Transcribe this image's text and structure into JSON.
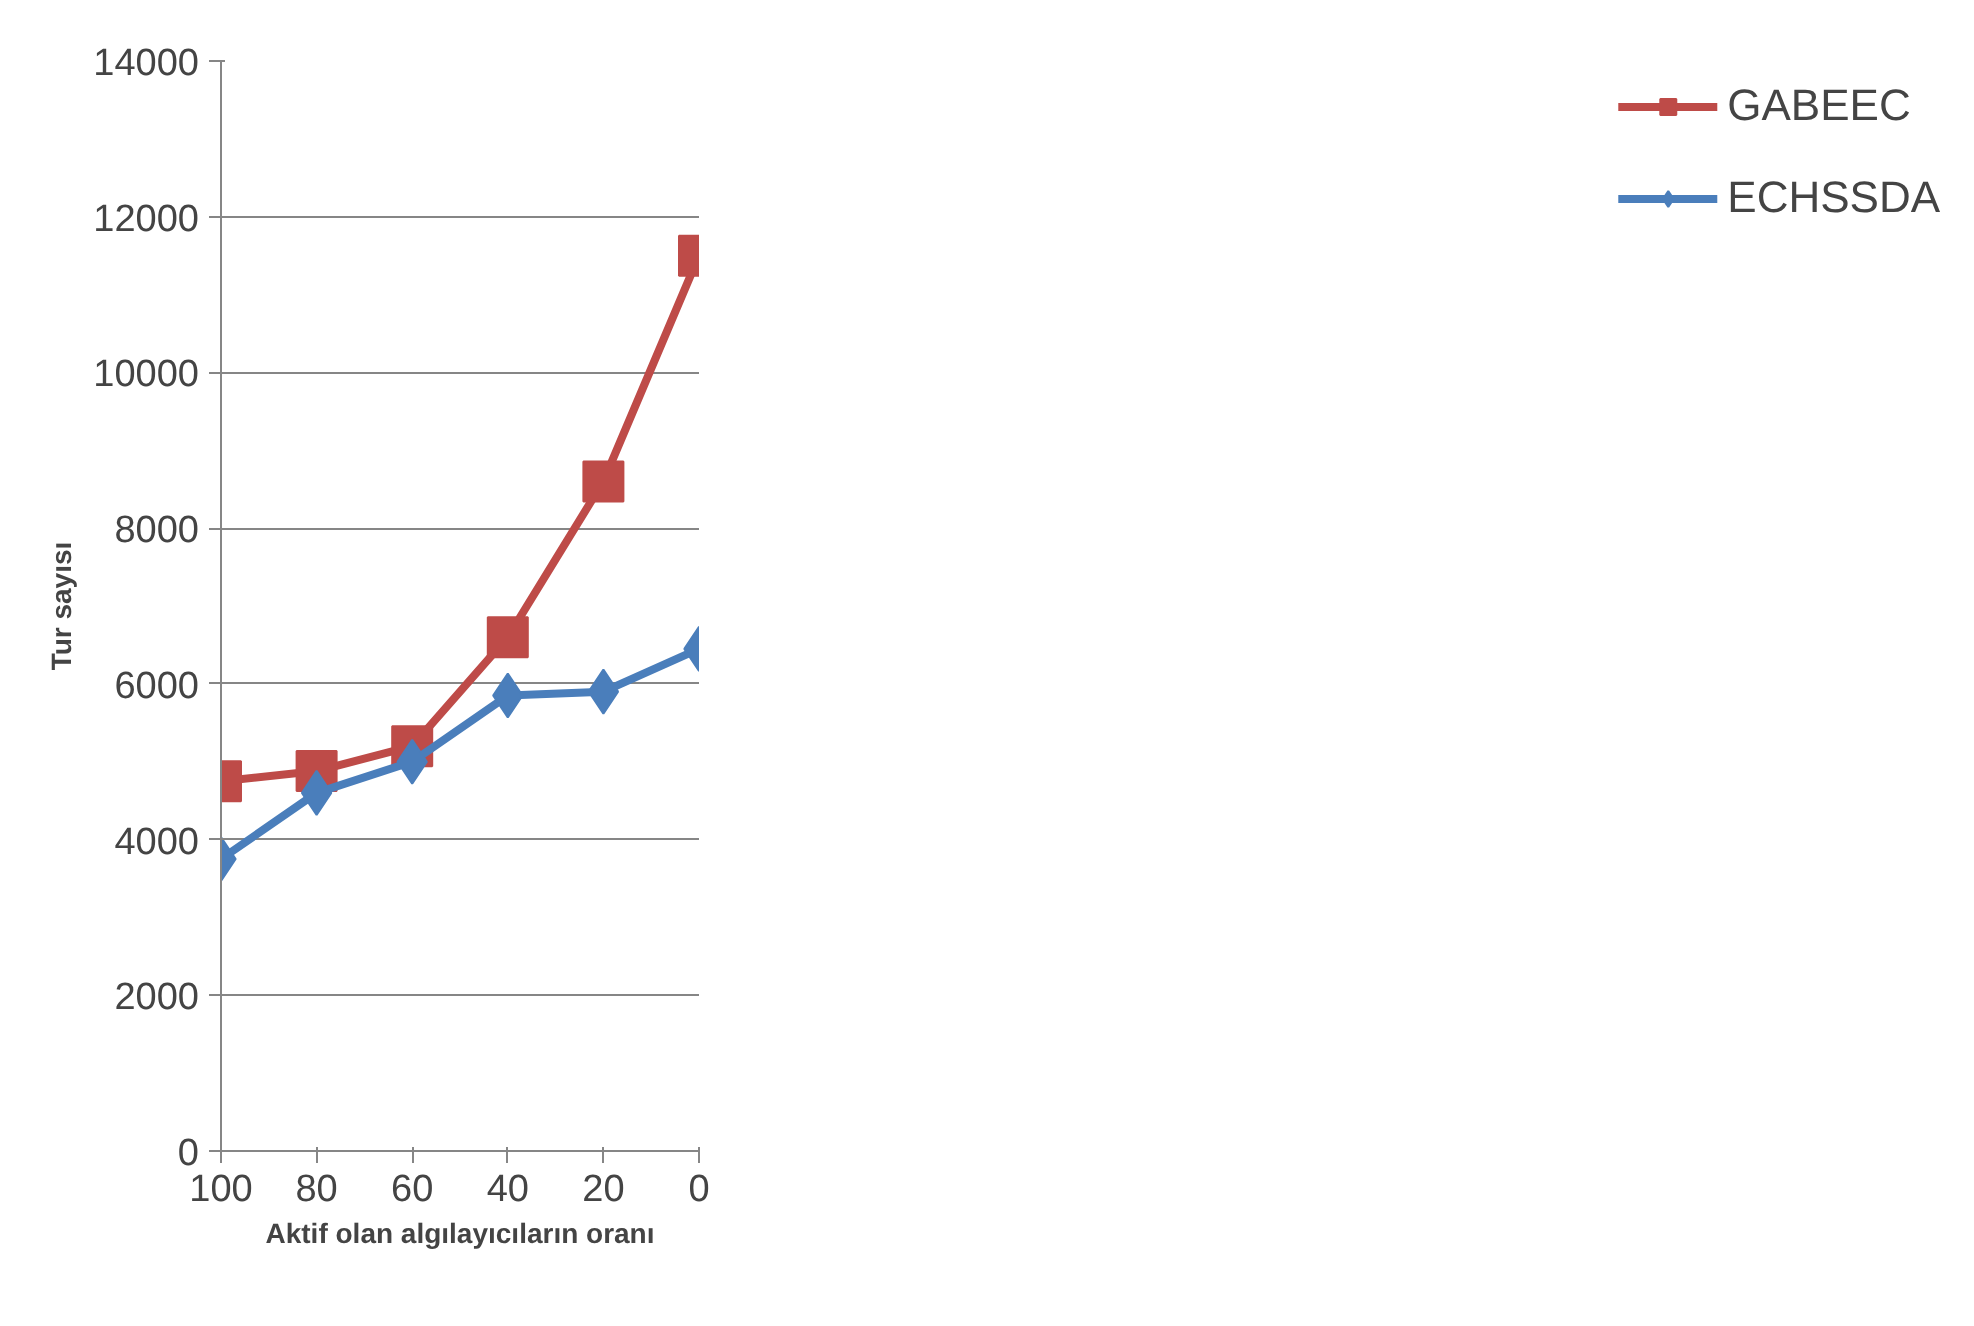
{
  "chart_data": {
    "type": "line",
    "xlabel": "Aktif olan algılayıcıların oranı",
    "ylabel": "Tur sayısı",
    "categories": [
      "100",
      "80",
      "60",
      "40",
      "20",
      "0"
    ],
    "series": [
      {
        "name": "GABEEC",
        "color": "#be4b48",
        "marker": "square",
        "values": [
          4750,
          4880,
          5200,
          6600,
          8600,
          11500
        ]
      },
      {
        "name": "ECHSSDA",
        "color": "#4a7ebb",
        "marker": "diamond",
        "values": [
          3750,
          4600,
          5000,
          5850,
          5900,
          6450
        ]
      }
    ],
    "ylim": [
      0,
      14000
    ],
    "yticks": [
      0,
      2000,
      4000,
      6000,
      8000,
      10000,
      12000,
      14000
    ],
    "grid": "y",
    "legend": "right",
    "line_style": "solid"
  }
}
